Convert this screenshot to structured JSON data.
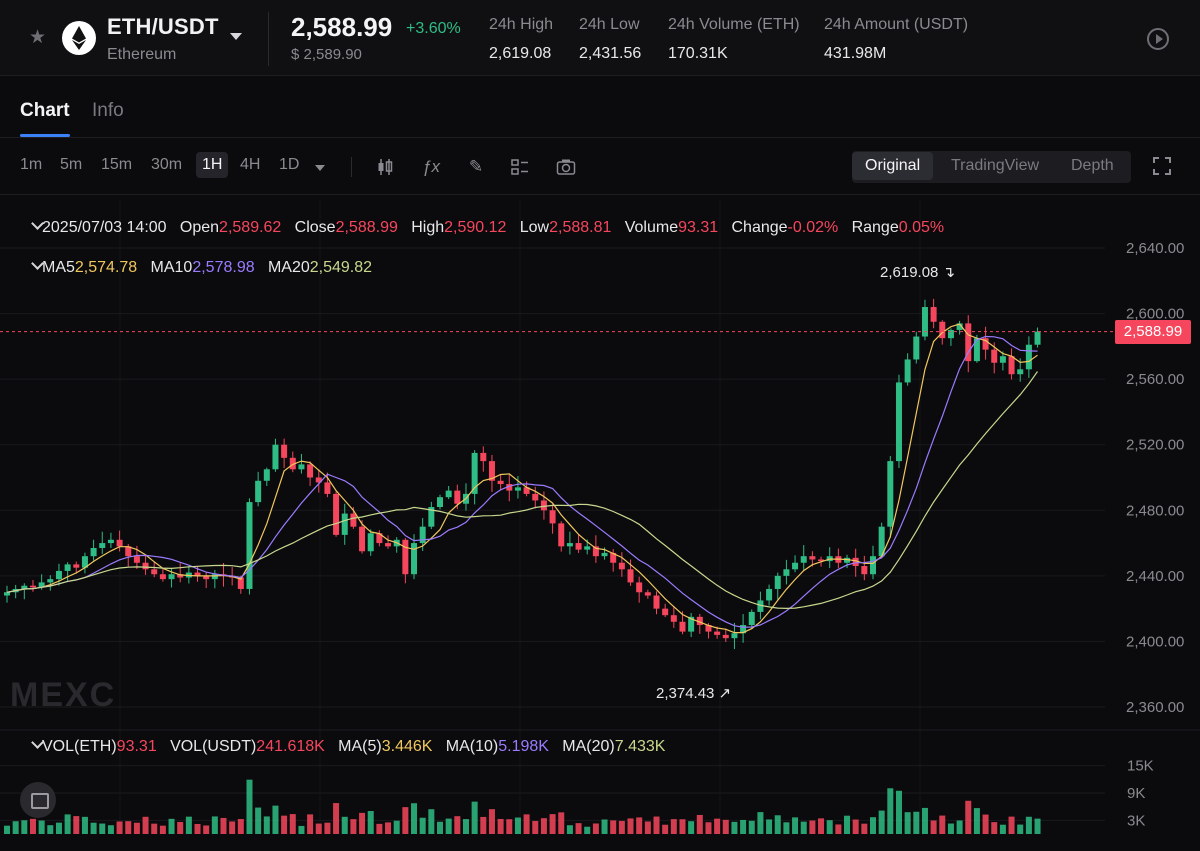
{
  "header": {
    "pair": "ETH/USDT",
    "coin_name": "Ethereum",
    "last_price": "2,588.99",
    "change_pct": "+3.60%",
    "usd_price": "$ 2,589.90",
    "stats": [
      {
        "label": "24h High",
        "value": "2,619.08"
      },
      {
        "label": "24h Low",
        "value": "2,431.56"
      },
      {
        "label": "24h Volume (ETH)",
        "value": "170.31K"
      },
      {
        "label": "24h Amount (USDT)",
        "value": "431.98M"
      }
    ],
    "icons": {
      "favorite": "star-icon",
      "coin": "ethereum-icon",
      "play": "play-icon"
    }
  },
  "tabs": [
    {
      "label": "Chart",
      "active": true
    },
    {
      "label": "Info",
      "active": false
    }
  ],
  "toolbar": {
    "timeframes": [
      "1m",
      "5m",
      "15m",
      "30m",
      "1H",
      "4H",
      "1D"
    ],
    "active_timeframe": "1H",
    "tool_icons": [
      "candle-type-icon",
      "indicator-fx-icon",
      "draw-pencil-icon",
      "layout-grid-icon",
      "camera-icon"
    ],
    "views": [
      "Original",
      "TradingView",
      "Depth"
    ],
    "active_view": "Original"
  },
  "ohlc": {
    "datetime": "2025/07/03 14:00",
    "open_label": "Open",
    "open": "2,589.62",
    "close_label": "Close",
    "close": "2,588.99",
    "high_label": "High",
    "high": "2,590.12",
    "low_label": "Low",
    "low": "2,588.81",
    "volume_label": "Volume",
    "volume": "93.31",
    "change_label": "Change",
    "change": "-0.02%",
    "range_label": "Range",
    "range": "0.05%"
  },
  "ma": {
    "ma5_label": "MA5",
    "ma5": "2,574.78",
    "ma10_label": "MA10",
    "ma10": "2,578.98",
    "ma20_label": "MA20",
    "ma20": "2,549.82"
  },
  "vol_legend": {
    "vol_eth_label": "VOL(ETH)",
    "vol_eth": "93.31",
    "vol_usdt_label": "VOL(USDT)",
    "vol_usdt": "241.618K",
    "ma5_label": "MA(5)",
    "ma5": "3.446K",
    "ma10_label": "MA(10)",
    "ma10": "5.198K",
    "ma20_label": "MA(20)",
    "ma20": "7.433K"
  },
  "price_axis": [
    "2,640.00",
    "2,600.00",
    "2,560.00",
    "2,520.00",
    "2,480.00",
    "2,440.00",
    "2,400.00",
    "2,360.00"
  ],
  "vol_axis": [
    "15K",
    "9K",
    "3K"
  ],
  "current_price_tag": "2,588.99",
  "annotations": {
    "high": "2,619.08",
    "low": "2,374.43"
  },
  "watermark": "MEXC",
  "colors": {
    "up": "#2fbd85",
    "down": "#f6465d",
    "ma5": "#f0c75e",
    "ma10": "#9b7bff",
    "ma20": "#c7d88e",
    "accent": "#3b82f6"
  },
  "chart_data": {
    "type": "candlestick",
    "interval": "1H",
    "price_range": [
      2360,
      2640
    ],
    "volume_range": [
      0,
      18000
    ],
    "candles_close": [
      2430,
      2432,
      2434,
      2433,
      2436,
      2438,
      2443,
      2447,
      2445,
      2452,
      2457,
      2460,
      2462,
      2458,
      2452,
      2448,
      2444,
      2441,
      2438,
      2441,
      2439,
      2442,
      2440,
      2438,
      2441,
      2440,
      2439,
      2432,
      2485,
      2498,
      2505,
      2520,
      2512,
      2505,
      2508,
      2500,
      2497,
      2490,
      2465,
      2478,
      2470,
      2455,
      2466,
      2460,
      2458,
      2462,
      2441,
      2460,
      2470,
      2482,
      2488,
      2492,
      2484,
      2490,
      2515,
      2510,
      2498,
      2496,
      2492,
      2494,
      2490,
      2486,
      2480,
      2472,
      2458,
      2460,
      2456,
      2458,
      2452,
      2454,
      2448,
      2444,
      2436,
      2430,
      2428,
      2420,
      2416,
      2412,
      2406,
      2415,
      2410,
      2406,
      2404,
      2402,
      2405,
      2410,
      2418,
      2425,
      2432,
      2440,
      2444,
      2448,
      2452,
      2450,
      2449,
      2452,
      2448,
      2451,
      2446,
      2441,
      2452,
      2470,
      2510,
      2558,
      2572,
      2586,
      2604,
      2595,
      2585,
      2590,
      2594,
      2571,
      2585,
      2578,
      2570,
      2574,
      2563,
      2566,
      2581,
      2589
    ],
    "series_volume": "vol(ETH) per hour, peaks near 15K at the breakout"
  }
}
